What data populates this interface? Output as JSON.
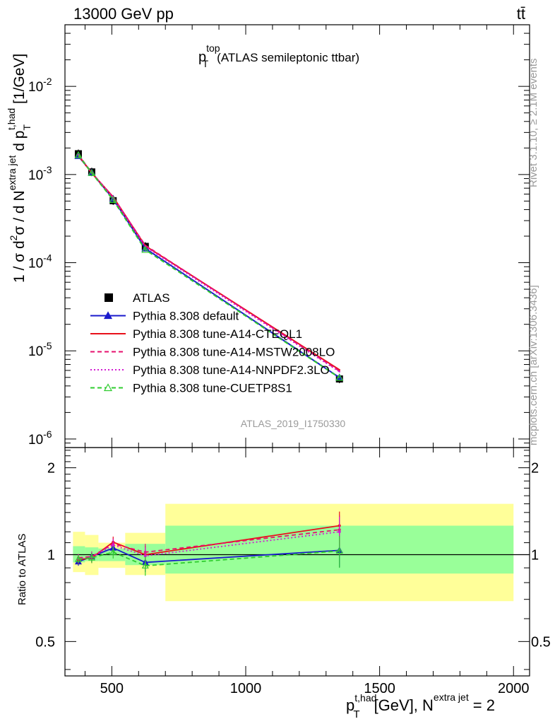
{
  "header": {
    "energy_label": "13000 GeV pp",
    "process_label": "tt̄",
    "rivet_label": "Rivet 3.1.10, ≥ 2.1M events",
    "mcplots_label": "mcplots.cern.ch [arXiv:1306.3436]",
    "analysis_id": "ATLAS_2019_I1750330"
  },
  "chart_data": {
    "type": "line",
    "title_main": "p",
    "title_sup": "top",
    "title_sub": "T",
    "title_rest": "(ATLAS semileptonic ttbar)",
    "xlabel": {
      "p": "p",
      "p_sup": "t,had",
      "p_sub": "T",
      "rest": "[GeV], N",
      "n_sup": "extra jet",
      "tail": "= 2"
    },
    "ylabel": {
      "p1": "1 / σ d",
      "sup2": "2",
      "p2": "σ  /  d N",
      "sup_extra": "extra jet",
      "p3": " d p",
      "sub_T": "T",
      "sup_thad": "t,had",
      "p4": " [1/GeV]"
    },
    "ratio_ylabel": "Ratio to ATLAS",
    "xlim": [
      325,
      2060
    ],
    "ylim": [
      8e-07,
      0.05
    ],
    "ylog": true,
    "ratio_ylim": [
      0.38,
      2.35
    ],
    "x_ticks": [
      500,
      1000,
      1500,
      2000
    ],
    "x_tick_labels": [
      "500",
      "1000",
      "1500",
      "2000"
    ],
    "y_tick_labels": [
      {
        "base": "10",
        "exp": "-2",
        "value": 0.01
      },
      {
        "base": "10",
        "exp": "-3",
        "value": 0.001
      },
      {
        "base": "10",
        "exp": "-4",
        "value": 0.0001
      },
      {
        "base": "10",
        "exp": "-5",
        "value": 1e-05
      },
      {
        "base": "10",
        "exp": "-6",
        "value": 1e-06
      }
    ],
    "ratio_ticks": [
      0.5,
      1,
      2
    ],
    "ratio_tick_labels": [
      "0.5",
      "1",
      "2"
    ],
    "bin_edges": [
      355,
      400,
      450,
      550,
      700,
      2000
    ],
    "x": [
      375,
      425,
      505,
      625,
      1350
    ],
    "band_inner": [
      [
        0.94,
        1.07
      ],
      [
        0.95,
        1.06
      ],
      [
        0.95,
        1.05
      ],
      [
        0.92,
        1.09
      ],
      [
        0.86,
        1.26
      ]
    ],
    "band_outer": [
      [
        0.87,
        1.2
      ],
      [
        0.85,
        1.17
      ],
      [
        0.9,
        1.1
      ],
      [
        0.85,
        1.19
      ],
      [
        0.69,
        1.5
      ]
    ],
    "series": [
      {
        "name": "ATLAS",
        "color": "#000000",
        "style": "data",
        "y": [
          0.00172,
          0.00107,
          0.000505,
          0.000153,
          4.8e-06
        ],
        "ratio": [
          1,
          1,
          1,
          1,
          1
        ]
      },
      {
        "name": "Pythia 8.308 default",
        "color": "#1a1acc",
        "style": "solid",
        "marker": "triangle",
        "y": [
          0.00162,
          0.00105,
          0.00053,
          0.000145,
          4.98e-06
        ],
        "ratio": [
          0.945,
          0.985,
          1.055,
          0.94,
          1.035
        ],
        "ratio_err": [
          0.03,
          0.04,
          0.05,
          0.07,
          0.13
        ]
      },
      {
        "name": "Pythia 8.308 tune-A14-CTEQL1",
        "color": "#e8101a",
        "style": "solid",
        "y": [
          0.00165,
          0.00104,
          0.000557,
          0.000155,
          6.1e-06
        ],
        "ratio": [
          0.96,
          0.975,
          1.105,
          1.0,
          1.26
        ],
        "ratio_err": [
          0.03,
          0.04,
          0.05,
          0.07,
          0.15
        ]
      },
      {
        "name": "Pythia 8.308 tune-A14-MSTW2008LO",
        "color": "#e6106e",
        "style": "dashed",
        "y": [
          0.00168,
          0.00105,
          0.00055,
          0.000157,
          5.9e-06
        ],
        "ratio": [
          0.975,
          0.985,
          1.09,
          1.02,
          1.22
        ],
        "ratio_err": [
          0.03,
          0.04,
          0.05,
          0.07,
          0.15
        ]
      },
      {
        "name": "Pythia 8.308 tune-A14-NNPDF2.3LO",
        "color": "#d21ad2",
        "style": "dotted",
        "y": [
          0.00167,
          0.00105,
          0.000545,
          0.000152,
          5.8e-06
        ],
        "ratio": [
          0.97,
          0.98,
          1.08,
          0.99,
          1.2
        ],
        "ratio_err": [
          0.03,
          0.04,
          0.05,
          0.07,
          0.15
        ]
      },
      {
        "name": "Pythia 8.308 tune-CUETP8S1",
        "color": "#2fcc2f",
        "style": "dashed",
        "marker": "triangle-open",
        "y": [
          0.00166,
          0.00104,
          0.000515,
          0.00014,
          4.95e-06
        ],
        "ratio": [
          0.965,
          0.975,
          1.02,
          0.915,
          1.03
        ],
        "ratio_err": [
          0.03,
          0.04,
          0.05,
          0.07,
          0.13
        ]
      }
    ]
  }
}
